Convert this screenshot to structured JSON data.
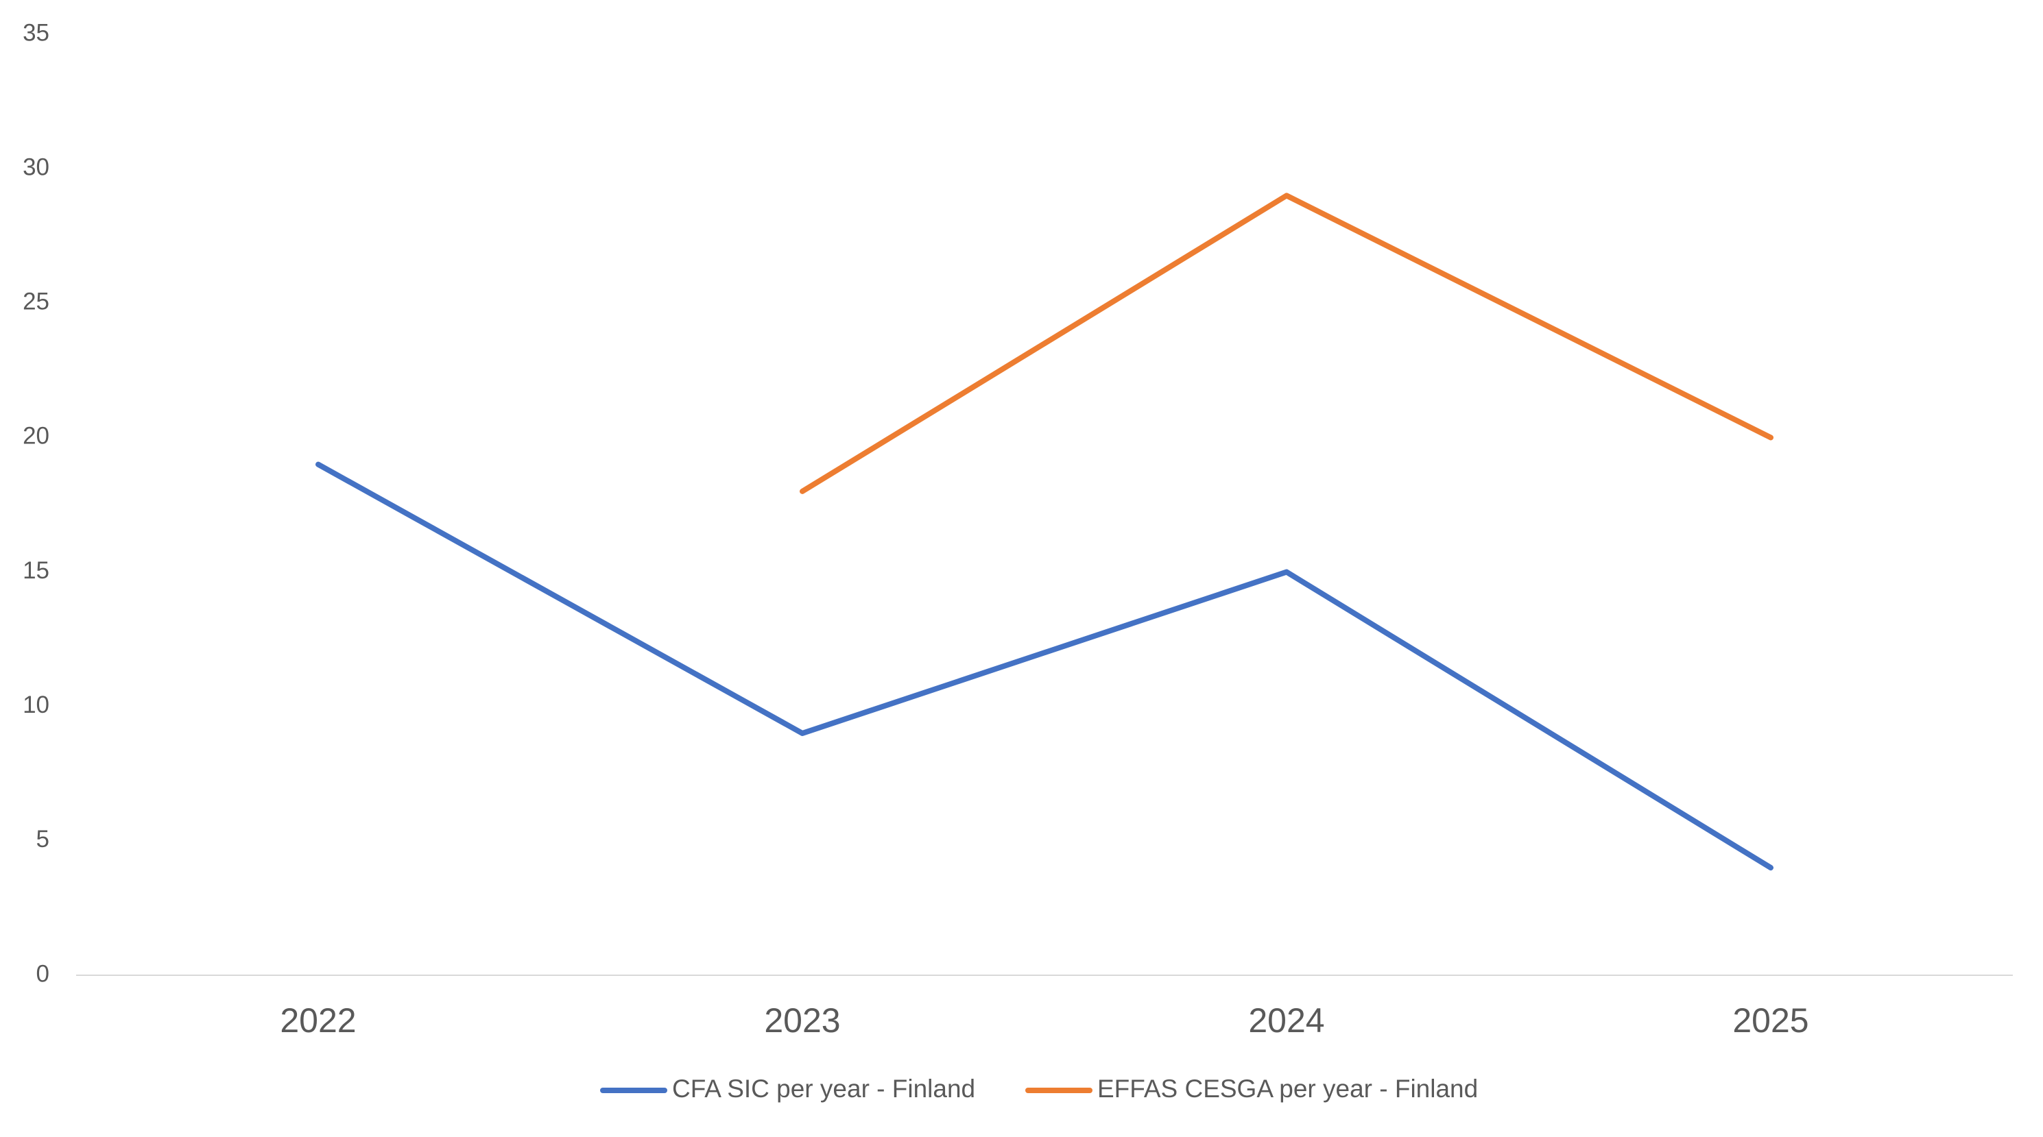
{
  "chart_data": {
    "type": "line",
    "categories": [
      "2022",
      "2023",
      "2024",
      "2025"
    ],
    "series": [
      {
        "name": "CFA SIC per year - Finland",
        "color": "#4472c4",
        "values": [
          19,
          9,
          15,
          4
        ]
      },
      {
        "name": "EFFAS CESGA per year - Finland",
        "color": "#ed7d31",
        "values": [
          null,
          18,
          29,
          20
        ]
      }
    ],
    "ylim": [
      0,
      35
    ],
    "yticks": [
      0,
      5,
      10,
      15,
      20,
      25,
      30,
      35
    ],
    "grid": false,
    "legend": "bottom"
  }
}
